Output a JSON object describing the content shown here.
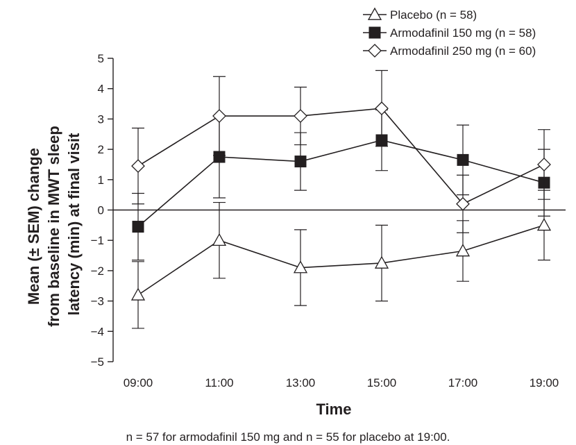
{
  "chart_data": {
    "type": "line",
    "x": [
      "09:00",
      "11:00",
      "13:00",
      "15:00",
      "17:00",
      "19:00"
    ],
    "xlabel": "Time",
    "ylabel": [
      "Mean (± SEM) change",
      "from baseline in MWT sleep",
      "latency (min) at final visit"
    ],
    "ylim": [
      -5,
      5
    ],
    "yticks": [
      "5",
      "4",
      "3",
      "2",
      "1",
      "0",
      "−1",
      "−2",
      "−3",
      "−4",
      "−5"
    ],
    "yticks_values": [
      5,
      4,
      3,
      2,
      1,
      0,
      -1,
      -2,
      -3,
      -4,
      -5
    ],
    "grid": false,
    "zero_line": true,
    "legend_position": "top-right",
    "series": [
      {
        "name": "Placebo (n = 58)",
        "marker": "open-triangle",
        "values": [
          -2.8,
          -1.0,
          -1.9,
          -1.75,
          -1.35,
          -0.5
        ],
        "errors": [
          1.1,
          1.25,
          1.25,
          1.25,
          1.0,
          1.15
        ]
      },
      {
        "name": "Armodafinil 150 mg (n = 58)",
        "marker": "filled-square",
        "values": [
          -0.55,
          1.75,
          1.6,
          2.3,
          1.65,
          0.9
        ],
        "errors": [
          1.1,
          1.35,
          0.95,
          1.0,
          1.15,
          1.1
        ]
      },
      {
        "name": "Armodafinil 250 mg (n = 60)",
        "marker": "open-diamond",
        "values": [
          1.45,
          3.1,
          3.1,
          3.35,
          0.2,
          1.5
        ],
        "errors": [
          1.25,
          1.3,
          0.95,
          1.25,
          0.95,
          1.15
        ]
      }
    ],
    "footnote": "n = 57 for armodafinil 150 mg and n = 55 for placebo at 19:00."
  },
  "colors": {
    "ink": "#231f20",
    "marker_fill_open": "#ffffff",
    "marker_fill_solid": "#231f20"
  }
}
